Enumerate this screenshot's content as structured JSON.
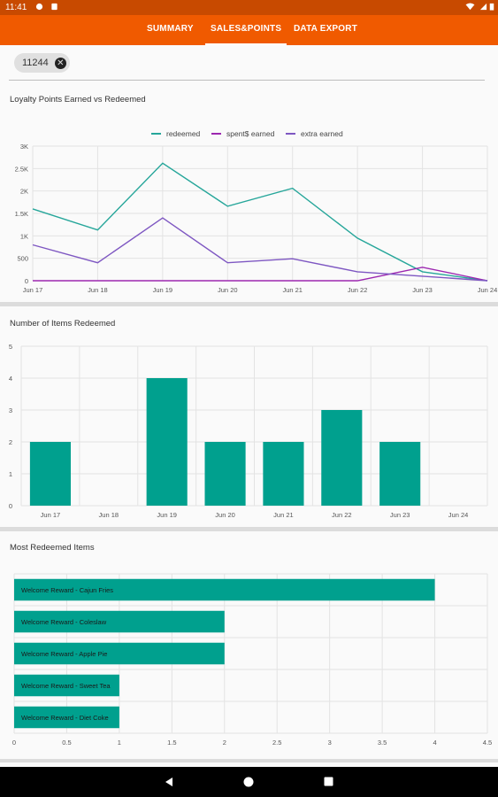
{
  "status_bar": {
    "time": "11:41"
  },
  "tabs": [
    {
      "label": "SUMMARY",
      "active": false
    },
    {
      "label": "SALES&POINTS",
      "active": true
    },
    {
      "label": "DATA EXPORT",
      "active": false
    }
  ],
  "filter_chip": {
    "label": "11244",
    "icon": "close-circle-icon"
  },
  "colors": {
    "accent": "#f05a00",
    "teal": "#26a69a",
    "bar": "#00a08e",
    "purple": "#9c27b0",
    "violet": "#7e57c2"
  },
  "chart_data": [
    {
      "type": "line",
      "title": "Loyalty Points Earned vs Redeemed",
      "x": [
        "Jun 17",
        "Jun 18",
        "Jun 19",
        "Jun 20",
        "Jun 21",
        "Jun 22",
        "Jun 23",
        "Jun 24"
      ],
      "yticks": [
        "0",
        "500",
        "1K",
        "1.5K",
        "2K",
        "2.5K",
        "3K"
      ],
      "ylim": [
        0,
        3000
      ],
      "legend": "top-center",
      "grid": true,
      "series": [
        {
          "name": "redeemed",
          "color": "#26a69a",
          "values": [
            1600,
            1130,
            2620,
            1660,
            2060,
            950,
            200,
            0
          ]
        },
        {
          "name": "spent$ earned",
          "color": "#9c27b0",
          "values": [
            0,
            0,
            0,
            0,
            0,
            0,
            300,
            0
          ]
        },
        {
          "name": "extra earned",
          "color": "#7e57c2",
          "values": [
            800,
            400,
            1400,
            400,
            490,
            200,
            100,
            0
          ]
        }
      ]
    },
    {
      "type": "bar",
      "title": "Number of Items Redeemed",
      "categories": [
        "Jun 17",
        "Jun 18",
        "Jun 19",
        "Jun 20",
        "Jun 21",
        "Jun 22",
        "Jun 23",
        "Jun 24"
      ],
      "values": [
        2,
        0,
        4,
        2,
        2,
        3,
        2,
        0
      ],
      "yticks": [
        "0",
        "1",
        "2",
        "3",
        "4",
        "5"
      ],
      "ylim": [
        0,
        5
      ],
      "grid": true
    },
    {
      "type": "bar",
      "orientation": "horizontal",
      "title": "Most Redeemed Items",
      "categories": [
        "Welcome Reward - Cajun Fries",
        "Welcome Reward - Coleslaw",
        "Welcome Reward - Apple Pie",
        "Welcome Reward - Sweet Tea",
        "Welcome Reward - Diet Coke"
      ],
      "values": [
        4,
        2,
        2,
        1,
        1
      ],
      "xticks": [
        "0",
        "0.5",
        "1",
        "1.5",
        "2",
        "2.5",
        "3",
        "3.5",
        "4",
        "4.5"
      ],
      "xlim": [
        0,
        4.5
      ],
      "grid": true
    }
  ]
}
